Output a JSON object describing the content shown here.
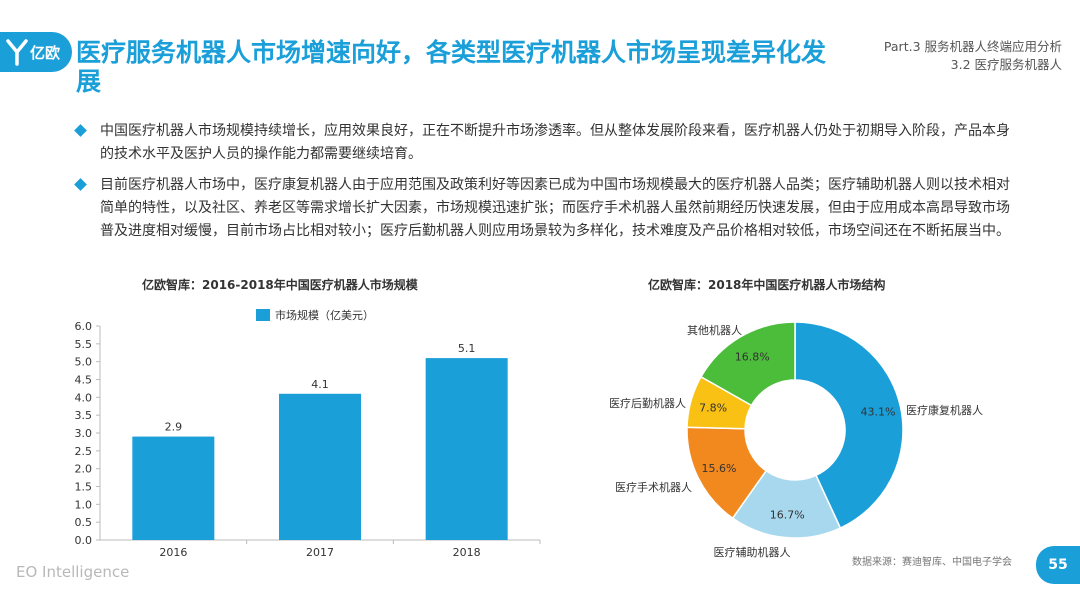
{
  "brand": {
    "logo_text": "亿欧",
    "footer": "EO Intelligence"
  },
  "header": {
    "title": "医疗服务机器人市场增速向好，各类型医疗机器人市场呈现差异化发展",
    "section_line1": "Part.3 服务机器人终端应用分析",
    "section_line2": "3.2 医疗服务机器人"
  },
  "bullets": [
    "中国医疗机器人市场规模持续增长，应用效果良好，正在不断提升市场渗透率。但从整体发展阶段来看，医疗机器人仍处于初期导入阶段，产品本身的技术水平及医护人员的操作能力都需要继续培育。",
    "目前医疗机器人市场中，医疗康复机器人由于应用范围及政策利好等因素已成为中国市场规模最大的医疗机器人品类；医疗辅助机器人则以技术相对简单的特性，以及社区、养老区等需求增长扩大因素，市场规模迅速扩张；而医疗手术机器人虽然前期经历快速发展，但由于应用成本高昂导致市场普及进度相对缓慢，目前市场占比相对较小；医疗后勤机器人则应用场景较为多样化，技术难度及产品价格相对较低，市场空间还在不断拓展当中。"
  ],
  "chart_data": [
    {
      "type": "bar",
      "title": "亿欧智库：2016-2018年中国医疗机器人市场规模",
      "categories": [
        "2016",
        "2017",
        "2018"
      ],
      "series": [
        {
          "name": "市场规模（亿美元）",
          "values": [
            2.9,
            4.1,
            5.1
          ]
        }
      ],
      "value_labels": [
        "2.9",
        "4.1",
        "5.1"
      ],
      "ylim": [
        0,
        6
      ],
      "yticks": [
        "0.0",
        "0.5",
        "1.0",
        "1.5",
        "2.0",
        "2.5",
        "3.0",
        "3.5",
        "4.0",
        "4.5",
        "5.0",
        "5.5",
        "6.0"
      ],
      "color": "#1a9fd9",
      "legend": "top",
      "grid": false
    },
    {
      "type": "pie",
      "donut": true,
      "title": "亿欧智库：2018年中国医疗机器人市场结构",
      "slices": [
        {
          "label": "医疗康复机器人",
          "value": 43.1,
          "display": "43.1%",
          "color": "#1a9fd9"
        },
        {
          "label": "医疗辅助机器人",
          "value": 16.7,
          "display": "16.7%",
          "color": "#a8d8ee"
        },
        {
          "label": "医疗手术机器人",
          "value": 15.6,
          "display": "15.6%",
          "color": "#f2891f"
        },
        {
          "label": "医疗后勤机器人",
          "value": 7.8,
          "display": "7.8%",
          "color": "#f9c114"
        },
        {
          "label": "其他机器人",
          "value": 16.8,
          "display": "16.8%",
          "color": "#4cbd3a"
        }
      ]
    }
  ],
  "source": "数据来源：赛迪智库、中国电子学会",
  "page_number": "55"
}
